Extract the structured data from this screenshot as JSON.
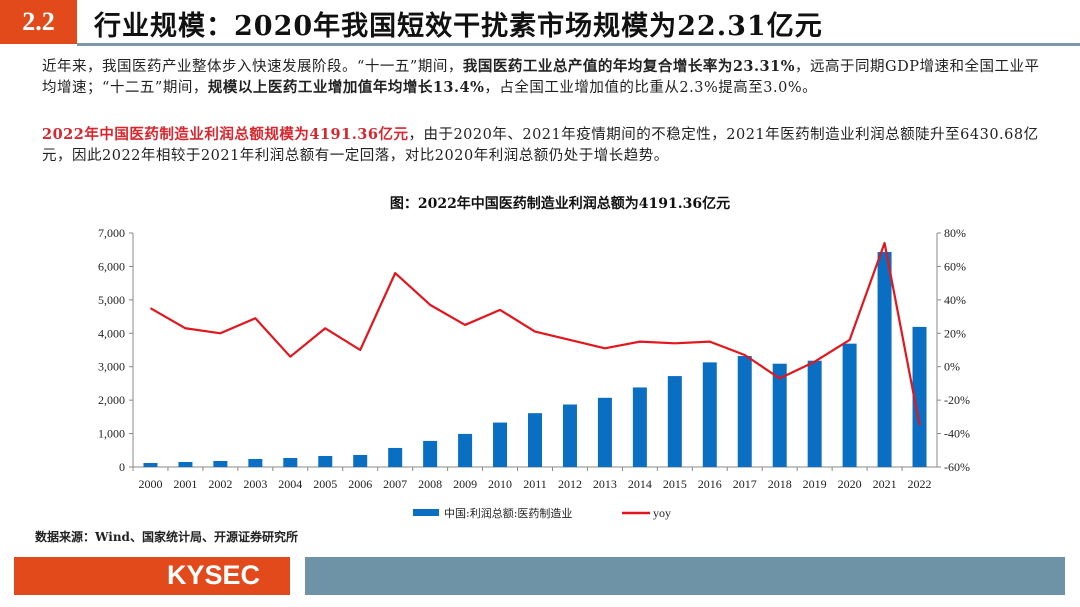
{
  "header": {
    "section": "2.2",
    "title": "行业规模：2020年我国短效干扰素市场规模为22.31亿元"
  },
  "paragraphs": [
    [
      {
        "t": "近年来，我国医药产业整体步入快速发展阶段。“十一五”期间，",
        "s": ""
      },
      {
        "t": "我国医药工业总产值的年均复合增长率为23.31%",
        "s": "b"
      },
      {
        "t": "，远高于同期GDP增速和全国工业平均增速；“十二五”期间，",
        "s": ""
      },
      {
        "t": "规模以上医药工业增加值年均增长13.4%",
        "s": "b"
      },
      {
        "t": "，占全国工业增加值的比重从2.3%提高至3.0%。",
        "s": ""
      }
    ],
    [
      {
        "t": "2022年中国医药制造业利润总额规模为4191.36亿元",
        "s": "r"
      },
      {
        "t": "，由于2020年、2021年疫情期间的不稳定性，2021年医药制造业利润总额陡升至6430.68亿元，因此2022年相较于2021年利润总额有一定回落，对比2020年利润总额仍处于增长趋势。",
        "s": ""
      }
    ]
  ],
  "chart_data": {
    "type": "bar+line",
    "title": "图：2022年中国医药制造业利润总额为4191.36亿元",
    "categories": [
      "2000",
      "2001",
      "2002",
      "2003",
      "2004",
      "2005",
      "2006",
      "2007",
      "2008",
      "2009",
      "2010",
      "2011",
      "2012",
      "2013",
      "2014",
      "2015",
      "2016",
      "2017",
      "2018",
      "2019",
      "2020",
      "2021",
      "2022"
    ],
    "series": [
      {
        "name": "中国:利润总额:医药制造业",
        "type": "bar",
        "axis": "left",
        "color": "#0a6fc2",
        "values": [
          120,
          150,
          180,
          240,
          270,
          330,
          360,
          570,
          780,
          990,
          1330,
          1610,
          1870,
          2070,
          2380,
          2720,
          3130,
          3320,
          3090,
          3180,
          3690,
          6430.68,
          4191.36
        ]
      },
      {
        "name": "yoy",
        "type": "line",
        "axis": "right",
        "color": "#e3161d",
        "values": [
          35,
          23,
          20,
          29,
          6,
          23,
          10,
          56,
          37,
          25,
          34,
          21,
          16,
          11,
          15,
          14,
          15,
          7,
          -7,
          3,
          16,
          74,
          -35
        ]
      }
    ],
    "left_axis": {
      "range": [
        0,
        7000
      ],
      "ticks": [
        "0",
        "1,000",
        "2,000",
        "3,000",
        "4,000",
        "5,000",
        "6,000",
        "7,000"
      ]
    },
    "right_axis": {
      "range": [
        -60,
        80
      ],
      "ticks": [
        "-60%",
        "-40%",
        "-20%",
        "0%",
        "20%",
        "40%",
        "60%",
        "80%"
      ]
    },
    "grid": false,
    "legend": "bottom"
  },
  "source": "数据来源：Wind、国家统计局、开源证券研究所",
  "footer": {
    "logo": "KYSEC"
  }
}
